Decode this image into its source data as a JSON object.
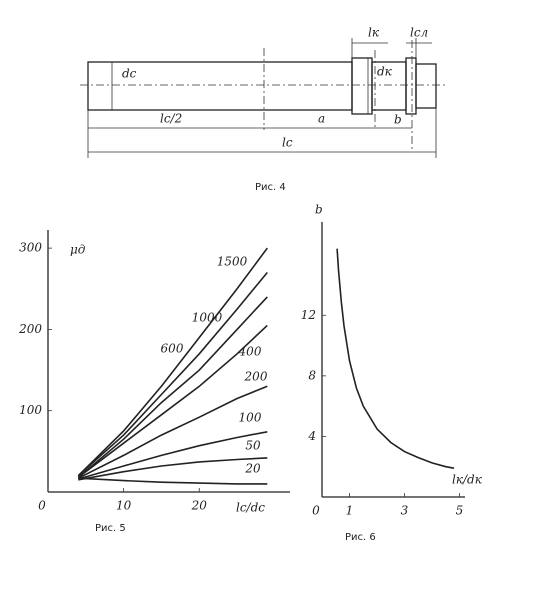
{
  "figure4": {
    "labels": {
      "dc": "dc",
      "lc_half": "lc/2",
      "a": "a",
      "b": "b",
      "lc": "lc",
      "lk": "lк",
      "dk": "dк",
      "lcl": "lсл"
    },
    "caption": "Рис. 4"
  },
  "chart_data": [
    {
      "type": "line",
      "ylabel": "μд",
      "xlabel": "lc/dc",
      "caption": "Рис. 5",
      "x": [
        4,
        10,
        15,
        20,
        25,
        29
      ],
      "series": [
        {
          "name": "1500",
          "color": "#222",
          "values": [
            20,
            75,
            130,
            190,
            250,
            300
          ]
        },
        {
          "name": "1000",
          "color": "#222",
          "values": [
            20,
            70,
            120,
            170,
            225,
            270
          ]
        },
        {
          "name": "600",
          "color": "#222",
          "values": [
            18,
            65,
            110,
            150,
            200,
            240
          ]
        },
        {
          "name": "400",
          "color": "#222",
          "values": [
            18,
            60,
            95,
            130,
            170,
            205
          ]
        },
        {
          "name": "200",
          "color": "#222",
          "values": [
            17,
            45,
            70,
            92,
            115,
            130
          ]
        },
        {
          "name": "100",
          "color": "#222",
          "values": [
            16,
            32,
            45,
            57,
            67,
            74
          ]
        },
        {
          "name": "50",
          "color": "#222",
          "values": [
            15,
            25,
            32,
            37,
            40,
            42
          ]
        },
        {
          "name": "20",
          "color": "#222",
          "values": [
            17,
            14,
            12,
            11,
            10,
            10
          ]
        }
      ],
      "xlim": [
        0,
        32
      ],
      "ylim": [
        0,
        310
      ],
      "xticks": [
        0,
        10,
        20
      ],
      "yticks": [
        100,
        200,
        300
      ]
    },
    {
      "type": "line",
      "ylabel": "b",
      "xlabel": "lк/dк",
      "caption": "Рис. 6",
      "x": [
        0.55,
        0.6,
        0.7,
        0.8,
        1,
        1.25,
        1.5,
        2,
        2.5,
        3,
        3.5,
        4,
        4.5,
        4.8
      ],
      "series": [
        {
          "color": "#222",
          "values": [
            16.4,
            15,
            12.9,
            11.3,
            9,
            7.2,
            6,
            4.5,
            3.6,
            3,
            2.6,
            2.25,
            2,
            1.9
          ]
        }
      ],
      "xlim": [
        0,
        5.2
      ],
      "ylim": [
        0,
        17.5
      ],
      "xticks": [
        0,
        1,
        3,
        5
      ],
      "yticks": [
        4,
        8,
        12
      ]
    }
  ]
}
